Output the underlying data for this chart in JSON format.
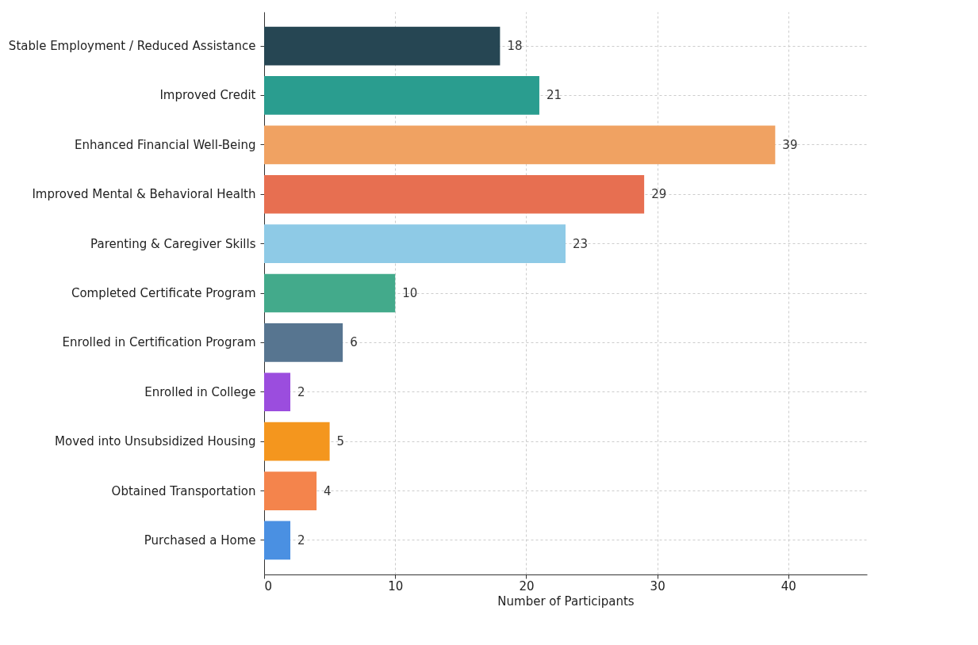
{
  "chart_data": {
    "type": "bar",
    "orientation": "horizontal",
    "xlabel": "Number of Participants",
    "categories": [
      "Stable Employment / Reduced Assistance",
      "Improved Credit",
      "Enhanced Financial Well-Being",
      "Improved Mental & Behavioral Health",
      "Parenting & Caregiver Skills",
      "Completed Certificate Program",
      "Enrolled in Certification Program",
      "Enrolled in College",
      "Moved into Unsubsidized Housing",
      "Obtained Transportation",
      "Purchased a Home"
    ],
    "values": [
      18,
      21,
      39,
      29,
      23,
      10,
      6,
      2,
      5,
      4,
      2
    ],
    "colors": [
      "#264653",
      "#2a9d8f",
      "#f0a262",
      "#e76f51",
      "#8ecae6",
      "#43aa8b",
      "#577590",
      "#9b4dde",
      "#f4961e",
      "#f4844c",
      "#4a90e2"
    ],
    "xlim": [
      0,
      46
    ],
    "xticks": [
      0,
      10,
      20,
      30,
      40
    ],
    "grid": true,
    "data_labels": true
  }
}
